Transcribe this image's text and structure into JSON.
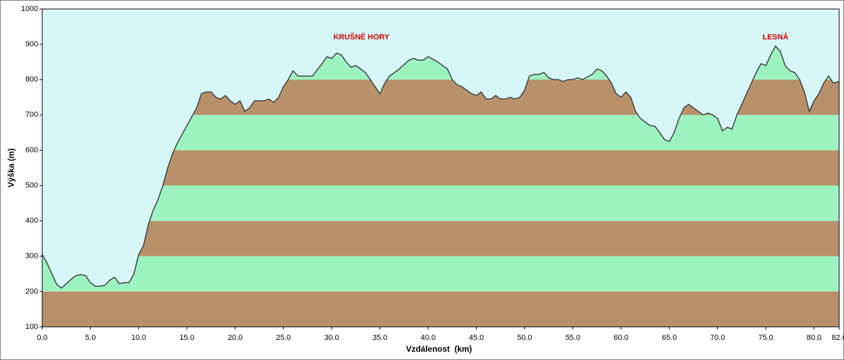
{
  "chart_data": {
    "type": "area",
    "xlabel": "Vzdálenost  (km)",
    "ylabel": "Výška (m)",
    "annotations": [
      "KRUŠNÉ HORY",
      "LESNÁ"
    ],
    "annotation_color": "#d40000",
    "line_color": "#404040",
    "sky_color": "#d7f6f8",
    "band_colors": [
      "#b8916b",
      "#9cf3c0"
    ],
    "x": [
      0,
      0.5,
      1,
      1.5,
      2,
      2.5,
      3,
      3.5,
      4,
      4.5,
      5,
      5.5,
      6,
      6.5,
      7,
      7.5,
      8,
      8.5,
      9,
      9.5,
      10,
      10.5,
      11,
      11.5,
      12,
      12.5,
      13,
      13.5,
      14,
      15,
      16,
      16.5,
      17,
      17.5,
      18,
      18.5,
      19,
      19.5,
      20,
      20.5,
      21,
      21.5,
      22,
      23,
      23.5,
      24,
      24.5,
      25,
      25.5,
      26,
      26.5,
      27,
      28,
      29,
      29.5,
      30,
      30.5,
      31,
      31.5,
      32,
      32.5,
      33,
      33.5,
      34,
      34.5,
      35,
      35.5,
      36,
      37,
      38,
      38.5,
      39,
      39.5,
      40,
      41,
      41.5,
      42,
      42.5,
      43,
      43.5,
      44,
      44.5,
      45,
      45.5,
      46,
      46.5,
      47,
      47.5,
      48,
      48.5,
      49,
      49.5,
      50,
      50.5,
      51,
      51.5,
      52,
      52.5,
      53,
      53.5,
      54,
      54.5,
      55,
      55.5,
      56,
      57,
      57.5,
      58,
      58.5,
      59,
      59.5,
      60,
      60.5,
      61,
      61.5,
      62,
      62.5,
      63,
      63.5,
      64,
      64.5,
      65,
      65.5,
      66,
      66.5,
      67,
      67.5,
      68,
      68.5,
      69,
      69.5,
      70,
      70.5,
      71,
      71.5,
      72,
      72.5,
      73,
      73.5,
      74,
      74.5,
      75,
      75.5,
      76,
      76.5,
      77,
      77.5,
      78,
      78.5,
      79,
      79.5,
      80,
      80.5,
      81,
      81.5,
      82,
      82.6
    ],
    "values": [
      305,
      280,
      250,
      220,
      210,
      222,
      235,
      245,
      248,
      245,
      225,
      215,
      215,
      218,
      232,
      240,
      222,
      225,
      225,
      250,
      305,
      330,
      390,
      430,
      460,
      500,
      550,
      590,
      620,
      670,
      720,
      760,
      765,
      765,
      750,
      745,
      755,
      740,
      730,
      740,
      710,
      720,
      740,
      740,
      745,
      735,
      750,
      780,
      800,
      825,
      810,
      810,
      810,
      845,
      865,
      860,
      875,
      870,
      850,
      835,
      840,
      830,
      820,
      800,
      780,
      760,
      790,
      810,
      830,
      855,
      860,
      855,
      855,
      865,
      850,
      840,
      830,
      800,
      785,
      780,
      770,
      760,
      755,
      765,
      745,
      745,
      755,
      745,
      745,
      750,
      745,
      750,
      770,
      810,
      815,
      815,
      820,
      805,
      800,
      800,
      795,
      800,
      800,
      805,
      800,
      815,
      830,
      825,
      810,
      790,
      760,
      750,
      765,
      750,
      710,
      690,
      680,
      670,
      668,
      650,
      630,
      625,
      650,
      690,
      720,
      730,
      720,
      710,
      700,
      705,
      700,
      690,
      655,
      665,
      660,
      700,
      730,
      760,
      790,
      820,
      845,
      840,
      870,
      895,
      880,
      840,
      825,
      820,
      800,
      765,
      710,
      740,
      760,
      790,
      810,
      790,
      795
    ],
    "xlim": [
      0,
      82.6
    ],
    "ylim": [
      100,
      1000
    ],
    "xticks": [
      {
        "value": 0,
        "label": "0.0"
      },
      {
        "value": 5,
        "label": "5.0"
      },
      {
        "value": 10,
        "label": "10.0"
      },
      {
        "value": 15,
        "label": "15.0"
      },
      {
        "value": 20,
        "label": "20.0"
      },
      {
        "value": 25,
        "label": "25.0"
      },
      {
        "value": 30,
        "label": "30.0"
      },
      {
        "value": 35,
        "label": "35.0"
      },
      {
        "value": 40,
        "label": "40.0"
      },
      {
        "value": 45,
        "label": "45.0"
      },
      {
        "value": 50,
        "label": "50.0"
      },
      {
        "value": 55,
        "label": "55.0"
      },
      {
        "value": 60,
        "label": "60.0"
      },
      {
        "value": 65,
        "label": "65.0"
      },
      {
        "value": 70,
        "label": "70.0"
      },
      {
        "value": 75,
        "label": "75.0"
      },
      {
        "value": 80,
        "label": "80.0"
      },
      {
        "value": 82.6,
        "label": "82.6"
      }
    ],
    "yticks": [
      100,
      200,
      300,
      400,
      500,
      600,
      700,
      800,
      900,
      1000
    ]
  }
}
